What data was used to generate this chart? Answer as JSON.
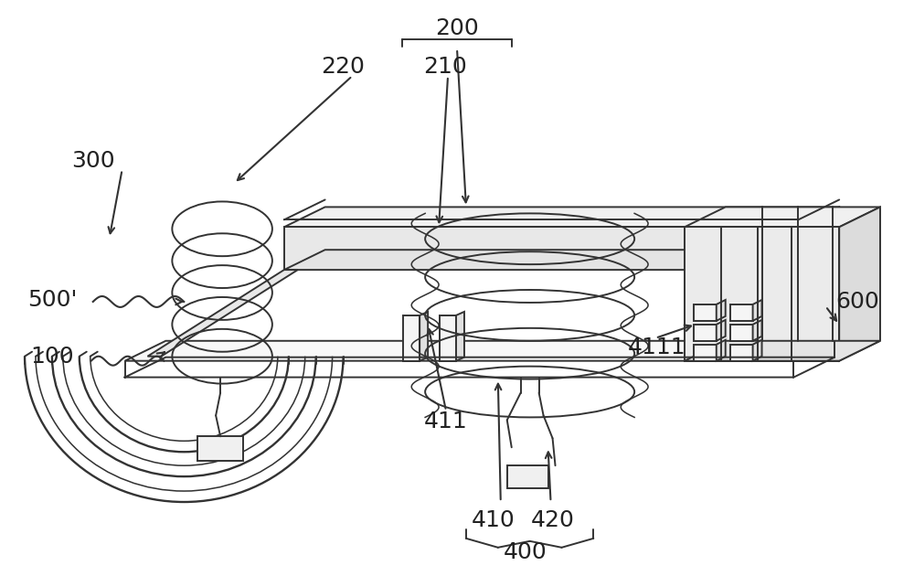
{
  "bg_color": "#ffffff",
  "line_color": "#333333",
  "label_color": "#222222",
  "fig_width": 10.0,
  "fig_height": 6.42,
  "dpi": 100
}
